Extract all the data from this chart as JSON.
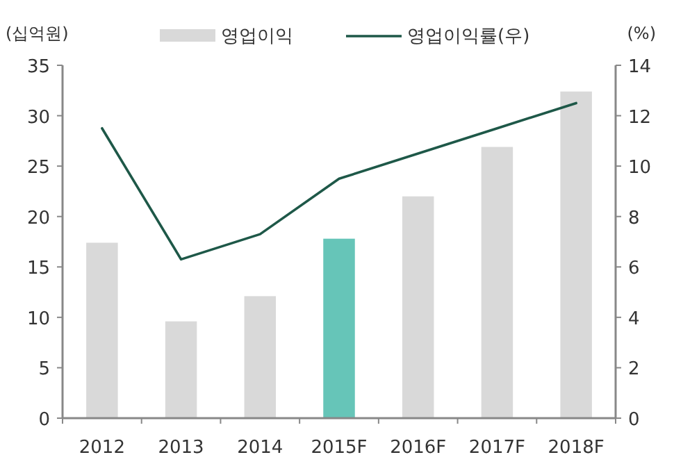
{
  "chart_data": {
    "type": "bar",
    "ylabel": "(십억원)",
    "y2label": "(%)",
    "categories": [
      "2012",
      "2013",
      "2014",
      "2015F",
      "2016F",
      "2017F",
      "2018F"
    ],
    "series": [
      {
        "name": "영업이익",
        "color": "#d9d9d9",
        "colors": [
          "#d9d9d9",
          "#d9d9d9",
          "#d9d9d9",
          "#66c5b8",
          "#d9d9d9",
          "#d9d9d9",
          "#d9d9d9"
        ],
        "values": [
          17.4,
          9.6,
          12.1,
          17.8,
          22.0,
          26.9,
          32.4
        ]
      },
      {
        "name": "영업이익률(우)",
        "type": "line",
        "axis": "y2",
        "color": "#1e5848",
        "values": [
          11.5,
          6.3,
          7.3,
          9.5,
          10.5,
          11.5,
          12.5
        ]
      }
    ],
    "ylim": [
      0,
      35
    ],
    "yticks": [
      0,
      5,
      10,
      15,
      20,
      25,
      30,
      35
    ],
    "y2lim": [
      0,
      14
    ],
    "y2ticks": [
      0,
      2,
      4,
      6,
      8,
      10,
      12,
      14
    ],
    "legend": "top",
    "grid": false,
    "marker": "none",
    "line_style": "solid"
  }
}
